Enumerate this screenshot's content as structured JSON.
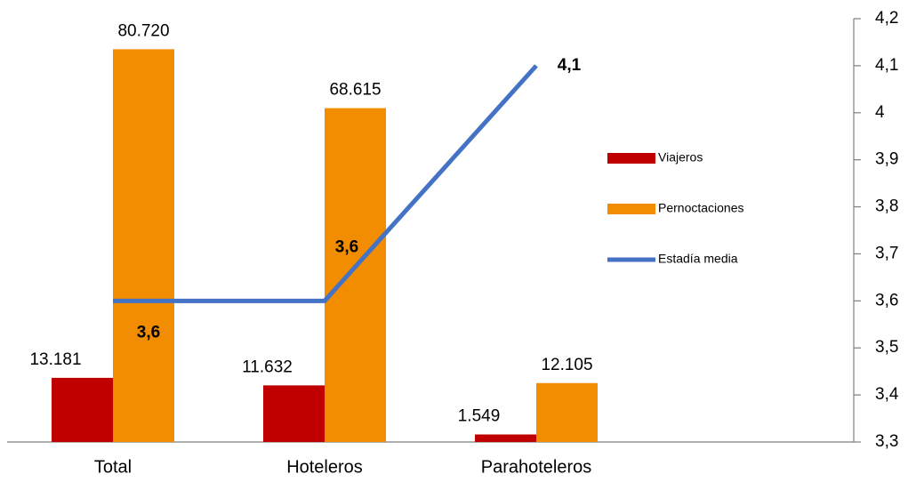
{
  "chart_data": {
    "type": "bar",
    "categories": [
      "Total",
      "Hoteleros",
      "Parahoteleros",
      null
    ],
    "series": [
      {
        "name": "Viajeros",
        "color": "#c00000",
        "values": [
          13181,
          11632,
          1549,
          null
        ],
        "value_labels": [
          "13.181",
          "11.632",
          "1.549",
          null
        ]
      },
      {
        "name": "Pernoctaciones",
        "color": "#f28c00",
        "values": [
          80720,
          68615,
          12105,
          null
        ],
        "value_labels": [
          "80.720",
          "68.615",
          "12.105",
          null
        ]
      },
      {
        "name": "Estadía media",
        "type": "line",
        "axis": "y2",
        "color": "#4472c4",
        "values": [
          3.6,
          3.6,
          4.1,
          null
        ],
        "value_labels": [
          "3,6",
          "3,6",
          "4,1",
          null
        ]
      }
    ],
    "ylim": [
      0,
      87000
    ],
    "y2lim": [
      3.3,
      4.2
    ],
    "y2ticks": [
      {
        "value": 3.3,
        "label": "3,3"
      },
      {
        "value": 3.4,
        "label": "3,4"
      },
      {
        "value": 3.5,
        "label": "3,5"
      },
      {
        "value": 3.6,
        "label": "3,6"
      },
      {
        "value": 3.7,
        "label": "3,7"
      },
      {
        "value": 3.8,
        "label": "3,8"
      },
      {
        "value": 3.9,
        "label": "3,9"
      },
      {
        "value": 4,
        "label": "4"
      },
      {
        "value": 4.1,
        "label": "4,1"
      },
      {
        "value": 4.2,
        "label": "4,2"
      }
    ],
    "legend": "right"
  }
}
